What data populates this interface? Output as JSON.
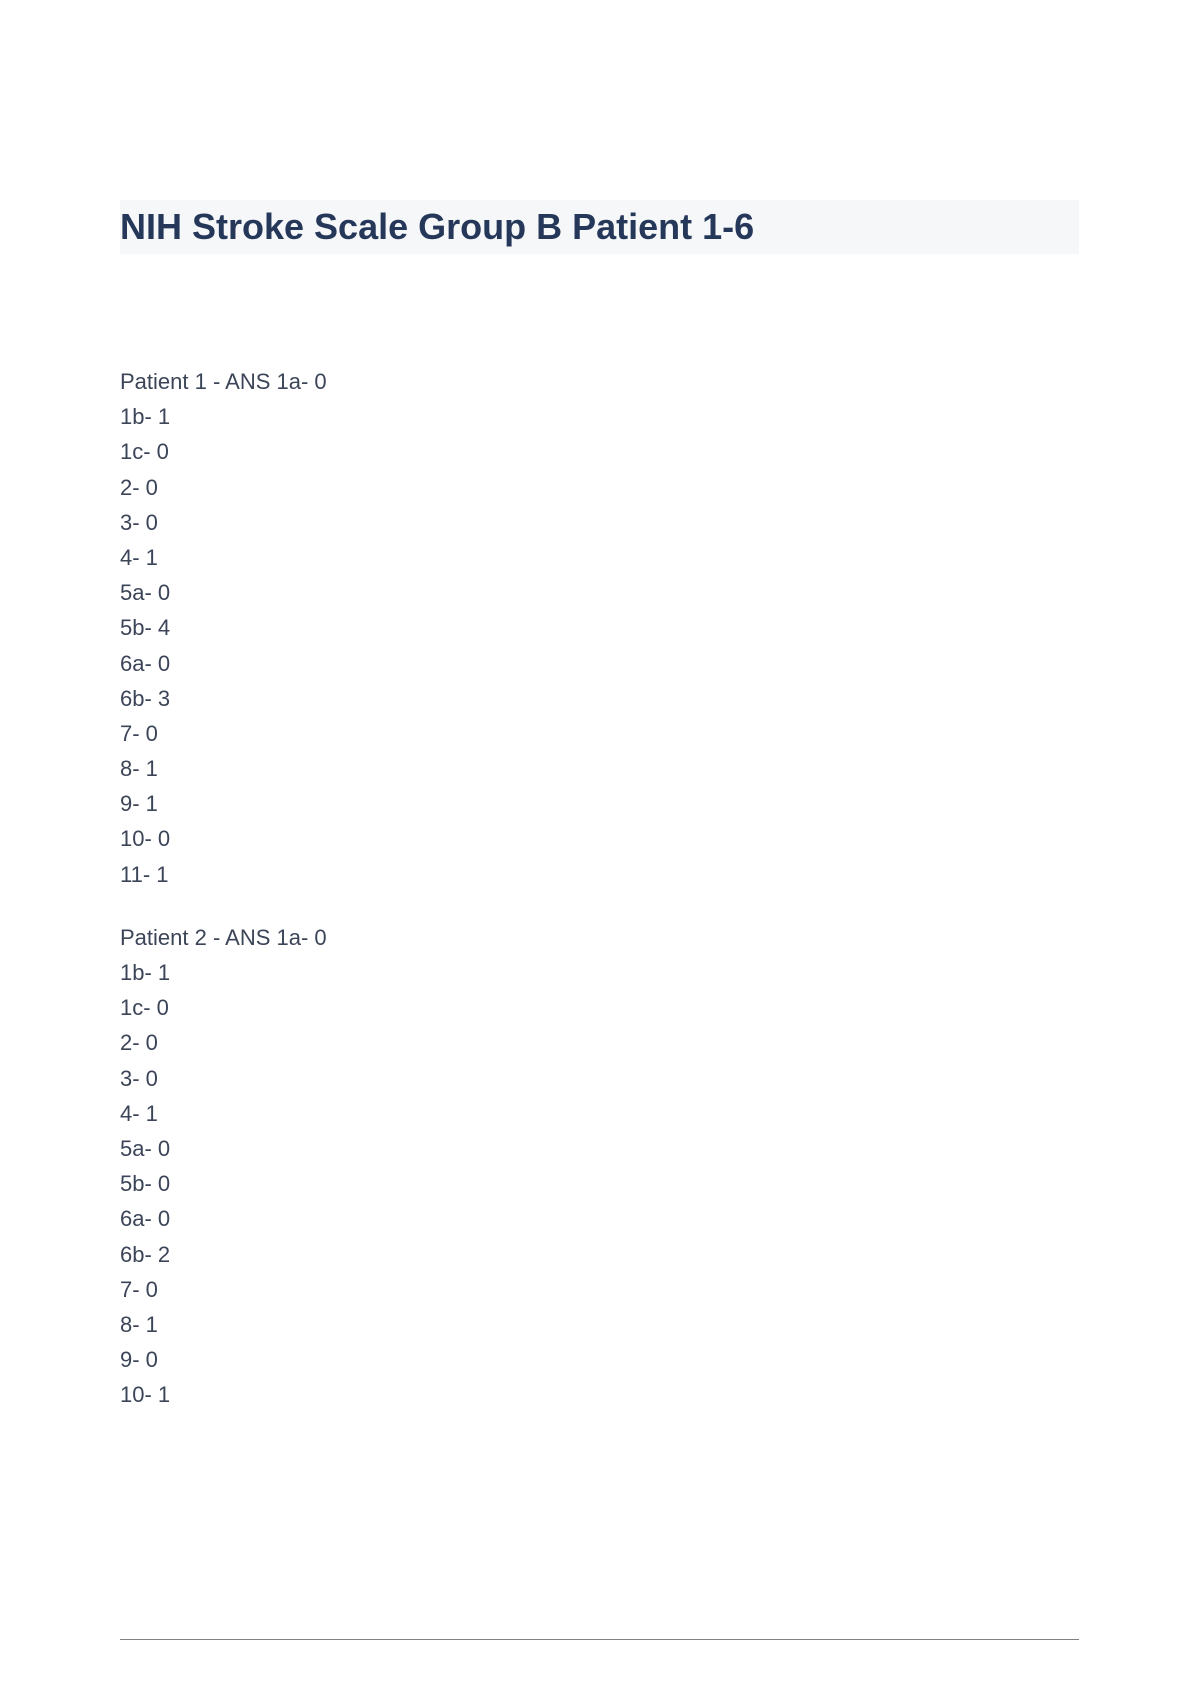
{
  "title": "NIH Stroke Scale Group B Patient 1-6",
  "patient1": {
    "header": "Patient 1 -  ANS 1a- 0",
    "l1b": "1b- 1",
    "l1c": "1c- 0",
    "l2": "2- 0",
    "l3": "3- 0",
    "l4": "4- 1",
    "l5a": "5a- 0",
    "l5b": "5b- 4",
    "l6a": "6a- 0",
    "l6b": "6b- 3",
    "l7": "7- 0",
    "l8": "8- 1",
    "l9": "9- 1",
    "l10": "10- 0",
    "l11": "11- 1"
  },
  "patient2": {
    "header": "Patient 2 -  ANS 1a- 0",
    "l1b": "1b- 1",
    "l1c": "1c- 0",
    "l2": "2- 0",
    "l3": "3- 0",
    "l4": "4- 1",
    "l5a": "5a- 0",
    "l5b": "5b- 0",
    "l6a": "6a- 0",
    "l6b": "6b- 2",
    "l7": "7- 0",
    "l8": "8- 1",
    "l9": "9- 0",
    "l10": "10- 1"
  },
  "colors": {
    "title": "#263859",
    "text": "#3c4558",
    "background": "#ffffff",
    "title_bg": "#f6f7f9",
    "footer_line": "#808080"
  },
  "typography": {
    "title_fontsize": 36,
    "title_weight": "bold",
    "body_fontsize": 22,
    "line_height": 1.6,
    "font_family": "Arial"
  }
}
